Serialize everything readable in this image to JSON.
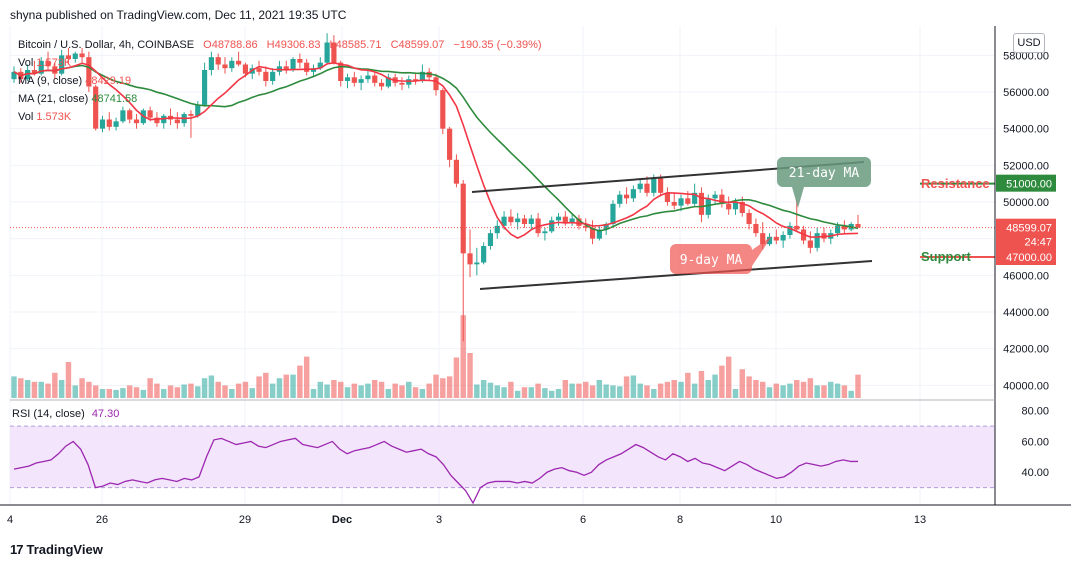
{
  "header": {
    "published": "shyna published on TradingView.com, Dec 11, 2021 19:35 UTC"
  },
  "legend": {
    "symbol": "Bitcoin / U.S. Dollar, 4h, COINBASE",
    "open": "O48788.86",
    "high": "H49306.83",
    "low": "L48585.71",
    "close": "C48599.07",
    "change": "−190.35 (−0.39%)",
    "vol1": "Vol",
    "vol1_val": "1.573K",
    "ma9": "MA (9, close)",
    "ma9_val": "48429.19",
    "ma21": "MA (21, close)",
    "ma21_val": "48741.58",
    "vol2": "Vol",
    "vol2_val": "1.573K"
  },
  "currency_button": "USD",
  "annotations": {
    "ma21_label": "21-day MA",
    "ma9_label": "9-day MA",
    "resistance": "Resistance",
    "support": "Support"
  },
  "price_tags": {
    "current": "48599.07",
    "countdown": "24:47",
    "resistance": "51000.00",
    "support": "47000.00"
  },
  "rsi": {
    "label": "RSI (14, close)",
    "value": "47.30"
  },
  "footer": {
    "brand": "TradingView",
    "logo": "17"
  },
  "colors": {
    "up": "#26a69a",
    "down": "#ef5350",
    "ma9": "#f23645",
    "ma21": "#2e8b3d",
    "rsi": "#9c27b0",
    "rsi_band": "#f3e5fb"
  },
  "chart_data": {
    "type": "candlestick",
    "title": "Bitcoin / U.S. Dollar, 4h, COINBASE",
    "y_ticks": [
      "58000.00",
      "56000.00",
      "54000.00",
      "52000.00",
      "50000.00",
      "48000.00",
      "46000.00",
      "44000.00",
      "42000.00",
      "40000.00"
    ],
    "x_ticks": [
      "4",
      "26",
      "29",
      "Dec",
      "3",
      "6",
      "8",
      "10",
      "13"
    ],
    "ylim": [
      39200,
      59600
    ],
    "candles": [
      [
        56700,
        57400,
        56500,
        57100
      ],
      [
        57100,
        57300,
        56500,
        56700
      ],
      [
        56700,
        57500,
        56600,
        57200
      ],
      [
        57200,
        57700,
        56900,
        57000
      ],
      [
        57000,
        57900,
        56900,
        57700
      ],
      [
        57700,
        58200,
        57200,
        57400
      ],
      [
        57400,
        57600,
        56700,
        57000
      ],
      [
        57000,
        58300,
        56900,
        58000
      ],
      [
        58000,
        58400,
        57500,
        57800
      ],
      [
        57800,
        58200,
        57600,
        58100
      ],
      [
        58100,
        58400,
        57600,
        57900
      ],
      [
        57900,
        58200,
        56000,
        56300
      ],
      [
        56300,
        56400,
        53900,
        54000
      ],
      [
        54000,
        54700,
        53800,
        54500
      ],
      [
        54500,
        54900,
        53900,
        54100
      ],
      [
        54100,
        54600,
        53900,
        54400
      ],
      [
        54400,
        55200,
        54300,
        55000
      ],
      [
        55000,
        55100,
        54300,
        54500
      ],
      [
        54500,
        54800,
        54000,
        54300
      ],
      [
        54300,
        55100,
        54200,
        55000
      ],
      [
        55000,
        55200,
        54400,
        54600
      ],
      [
        54600,
        54900,
        54100,
        54300
      ],
      [
        54300,
        54800,
        54000,
        54700
      ],
      [
        54700,
        55100,
        54200,
        54500
      ],
      [
        54500,
        54900,
        54000,
        54300
      ],
      [
        54300,
        54900,
        54100,
        54800
      ],
      [
        54800,
        55000,
        53500,
        54700
      ],
      [
        54700,
        55500,
        54600,
        55300
      ],
      [
        55300,
        57600,
        55200,
        57200
      ],
      [
        57200,
        58200,
        56900,
        57900
      ],
      [
        57900,
        58100,
        57200,
        57500
      ],
      [
        57500,
        57900,
        57000,
        57300
      ],
      [
        57300,
        57900,
        57100,
        57700
      ],
      [
        57700,
        58200,
        57400,
        57500
      ],
      [
        57500,
        57600,
        56800,
        57000
      ],
      [
        57000,
        57500,
        56700,
        57300
      ],
      [
        57300,
        57700,
        56900,
        57100
      ],
      [
        57100,
        57400,
        56300,
        56600
      ],
      [
        56600,
        57300,
        56400,
        57100
      ],
      [
        57100,
        57700,
        56900,
        57400
      ],
      [
        57400,
        57700,
        57000,
        57200
      ],
      [
        57200,
        57900,
        57100,
        57800
      ],
      [
        57800,
        58100,
        57300,
        57600
      ],
      [
        57600,
        57800,
        56900,
        57100
      ],
      [
        57100,
        57500,
        56800,
        57300
      ],
      [
        57300,
        57900,
        57200,
        57600
      ],
      [
        57600,
        59200,
        57500,
        58700
      ],
      [
        58700,
        59100,
        57500,
        57600
      ],
      [
        57600,
        57700,
        56300,
        56600
      ],
      [
        56600,
        57000,
        56200,
        56800
      ],
      [
        56800,
        57100,
        56300,
        56500
      ],
      [
        56500,
        56900,
        56100,
        56700
      ],
      [
        56700,
        57200,
        56500,
        56900
      ],
      [
        56900,
        57100,
        56300,
        56500
      ],
      [
        56500,
        56700,
        56100,
        56300
      ],
      [
        56300,
        57000,
        56200,
        56800
      ],
      [
        56800,
        57000,
        56300,
        56500
      ],
      [
        56500,
        56800,
        56100,
        56400
      ],
      [
        56400,
        56900,
        56200,
        56700
      ],
      [
        56700,
        57000,
        56400,
        56600
      ],
      [
        56600,
        57500,
        56500,
        57100
      ],
      [
        57100,
        57300,
        56600,
        56800
      ],
      [
        56800,
        57000,
        55800,
        56100
      ],
      [
        56100,
        56200,
        53700,
        54000
      ],
      [
        54000,
        54100,
        51900,
        52300
      ],
      [
        52300,
        52600,
        50800,
        51000
      ],
      [
        51000,
        51200,
        42400,
        47200
      ],
      [
        47200,
        48500,
        45900,
        46600
      ],
      [
        46600,
        47500,
        46000,
        46700
      ],
      [
        46700,
        47800,
        46600,
        47600
      ],
      [
        47600,
        48500,
        47400,
        48300
      ],
      [
        48300,
        49000,
        48000,
        48700
      ],
      [
        48700,
        49500,
        48500,
        49200
      ],
      [
        49200,
        49600,
        48700,
        48900
      ],
      [
        48900,
        49400,
        48500,
        49100
      ],
      [
        49100,
        49300,
        48600,
        48800
      ],
      [
        48800,
        49300,
        48500,
        49100
      ],
      [
        49100,
        49400,
        48100,
        48300
      ],
      [
        48300,
        48600,
        47900,
        48400
      ],
      [
        48400,
        49200,
        48300,
        49000
      ],
      [
        49000,
        49400,
        48700,
        49200
      ],
      [
        49200,
        49500,
        48700,
        48900
      ],
      [
        48900,
        49400,
        48700,
        49100
      ],
      [
        49100,
        49300,
        48500,
        48700
      ],
      [
        48700,
        49100,
        48400,
        48600
      ],
      [
        48600,
        49000,
        47700,
        48000
      ],
      [
        48000,
        48700,
        47900,
        48500
      ],
      [
        48500,
        48900,
        48200,
        48800
      ],
      [
        48800,
        50100,
        48700,
        49900
      ],
      [
        49900,
        50600,
        49700,
        50400
      ],
      [
        50400,
        50800,
        49900,
        50200
      ],
      [
        50200,
        50900,
        50000,
        50700
      ],
      [
        50700,
        51200,
        50500,
        51000
      ],
      [
        51000,
        51400,
        50300,
        50500
      ],
      [
        50500,
        51500,
        50300,
        51300
      ],
      [
        51300,
        51500,
        50300,
        50500
      ],
      [
        50500,
        50800,
        49800,
        50000
      ],
      [
        50000,
        50500,
        49600,
        49800
      ],
      [
        49800,
        50400,
        49500,
        50200
      ],
      [
        50200,
        50600,
        49800,
        49900
      ],
      [
        49900,
        51000,
        49800,
        50500
      ],
      [
        50500,
        50800,
        48900,
        49300
      ],
      [
        49300,
        50400,
        49100,
        50200
      ],
      [
        50200,
        50600,
        49900,
        50400
      ],
      [
        50400,
        50700,
        49700,
        49900
      ],
      [
        49900,
        50300,
        49300,
        49600
      ],
      [
        49600,
        50200,
        49300,
        50000
      ],
      [
        50000,
        50300,
        49200,
        49400
      ],
      [
        49400,
        49600,
        48500,
        48800
      ],
      [
        48800,
        49100,
        48100,
        48300
      ],
      [
        48300,
        48900,
        47400,
        47700
      ],
      [
        47700,
        48300,
        47600,
        48100
      ],
      [
        48100,
        48500,
        47700,
        47900
      ],
      [
        47900,
        48400,
        47500,
        48200
      ],
      [
        48200,
        48900,
        48000,
        48700
      ],
      [
        48700,
        50100,
        48400,
        48500
      ],
      [
        48500,
        48700,
        47700,
        47900
      ],
      [
        47900,
        48400,
        47200,
        47500
      ],
      [
        47500,
        48600,
        47300,
        48300
      ],
      [
        48300,
        48600,
        47800,
        48000
      ],
      [
        48000,
        48500,
        47700,
        48300
      ],
      [
        48300,
        48900,
        48100,
        48700
      ],
      [
        48700,
        49000,
        48300,
        48500
      ],
      [
        48500,
        48900,
        48400,
        48800
      ],
      [
        48800,
        49300,
        48600,
        48600
      ]
    ],
    "volume": {
      "up": [
        24,
        28,
        20,
        22,
        18,
        30,
        15,
        20,
        17,
        14,
        12,
        10,
        8,
        10,
        12,
        9,
        11,
        8,
        10,
        9,
        16,
        14,
        10,
        18,
        20,
        15,
        14,
        13,
        22,
        25,
        16,
        12,
        10,
        14,
        9,
        11,
        18,
        24,
        16,
        22,
        20,
        26,
        14,
        12,
        10,
        18,
        15,
        24,
        20,
        12,
        10,
        14,
        16,
        18,
        12,
        10,
        14,
        20,
        18,
        16,
        10,
        8
      ],
      "down": [
        26,
        22,
        24,
        18,
        20,
        16,
        28,
        32,
        40,
        30,
        22,
        18,
        14,
        12,
        10,
        16,
        18,
        14,
        12,
        20,
        22,
        16,
        18,
        14,
        12,
        10,
        16,
        18,
        24,
        22,
        18,
        14,
        12,
        16,
        18,
        20,
        24,
        28,
        22,
        30,
        26,
        40,
        36,
        46,
        30,
        32,
        24,
        20,
        18,
        22,
        16,
        14,
        12,
        20,
        18,
        22,
        16,
        14,
        10,
        12,
        14,
        16
      ]
    },
    "rsi_values": [
      42,
      43,
      44,
      46,
      47,
      48,
      52,
      57,
      60,
      55,
      45,
      30,
      31,
      33,
      32,
      34,
      35,
      34,
      33,
      35,
      36,
      35,
      34,
      36,
      35,
      37,
      50,
      61,
      62,
      60,
      58,
      59,
      60,
      57,
      56,
      58,
      60,
      61,
      62,
      58,
      57,
      56,
      58,
      60,
      55,
      52,
      54,
      55,
      56,
      58,
      60,
      57,
      55,
      53,
      54,
      55,
      52,
      50,
      45,
      38,
      33,
      28,
      20,
      30,
      33,
      34,
      34,
      34,
      33,
      34,
      33,
      36,
      40,
      42,
      43,
      41,
      40,
      38,
      40,
      45,
      48,
      50,
      52,
      55,
      58,
      56,
      53,
      50,
      48,
      52,
      50,
      47,
      49,
      46,
      45,
      43,
      41,
      44,
      47,
      45,
      42,
      40,
      38,
      36,
      37,
      40,
      44,
      46,
      45,
      44,
      45,
      47,
      48,
      47,
      47
    ],
    "rsi_levels": [
      70,
      30
    ],
    "rsi_ticks": [
      "80.00",
      "60.00",
      "40.00"
    ],
    "ma9_label": "9-day MA",
    "ma21_label": "21-day MA",
    "resistance": 51000,
    "support": 47000
  }
}
